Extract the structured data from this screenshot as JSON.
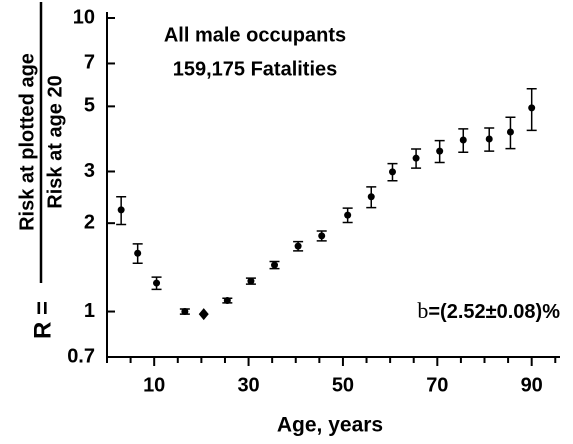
{
  "chart_data": {
    "type": "scatter",
    "x_label": "Age, years",
    "y_label_prefix": "R =",
    "y_label_numerator": "Risk at plotted age",
    "y_label_denominator": "Risk at age 20",
    "annotations": [
      "All male occupants",
      "159,175 Fatalities"
    ],
    "formula": {
      "symbol": "b",
      "text": "=(2.52±0.08)%"
    },
    "x": [
      3,
      6.5,
      10.5,
      16.5,
      20.5,
      25.5,
      30.5,
      35.5,
      40.5,
      45.5,
      51,
      56,
      60.5,
      65.5,
      70.5,
      75.5,
      81,
      85.5,
      90
    ],
    "values": [
      2.22,
      1.58,
      1.25,
      1.0,
      0.98,
      1.09,
      1.27,
      1.44,
      1.67,
      1.81,
      2.13,
      2.46,
      2.99,
      3.33,
      3.52,
      3.84,
      3.87,
      4.09,
      4.94
    ],
    "errors": [
      0.24,
      0.12,
      0.06,
      0.02,
      null,
      0.02,
      0.03,
      0.04,
      0.06,
      0.07,
      0.12,
      0.2,
      0.2,
      0.25,
      0.3,
      0.35,
      0.35,
      0.5,
      0.8
    ],
    "markers": [
      "circle",
      "circle",
      "circle",
      "circle",
      "diamond",
      "circle",
      "circle",
      "circle",
      "circle",
      "circle",
      "circle",
      "circle",
      "circle",
      "circle",
      "circle",
      "circle",
      "circle",
      "circle",
      "circle"
    ],
    "color": "#000000",
    "xlim": [
      0,
      96
    ],
    "xticks": [
      10,
      30,
      50,
      70,
      90
    ],
    "xminorticks": [
      0,
      5,
      15,
      20,
      25,
      35,
      40,
      45,
      55,
      60,
      65,
      75,
      80,
      85,
      95
    ],
    "ylim": [
      0.7,
      10
    ],
    "yticks": [
      0.7,
      1,
      2,
      3,
      5,
      7,
      10
    ],
    "ylog": true
  }
}
